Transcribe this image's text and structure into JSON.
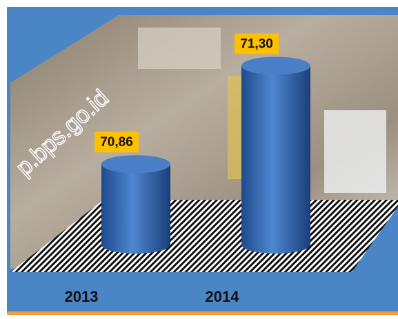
{
  "chart_data": {
    "type": "bar",
    "watermark": "p.bps.go.id",
    "categories": [
      "2013",
      "2014"
    ],
    "values": [
      70.86,
      71.3
    ],
    "value_labels": [
      "70,86",
      "71,30"
    ],
    "color": "#2e64b0",
    "ylim": [
      70.5,
      71.4
    ]
  }
}
